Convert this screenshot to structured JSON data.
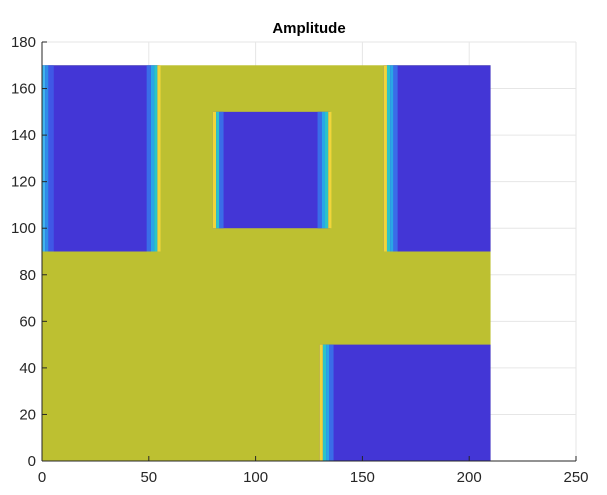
{
  "chart_data": {
    "type": "heatmap",
    "title": "Amplitude",
    "xlim": [
      0,
      250
    ],
    "ylim": [
      0,
      180
    ],
    "x_ticks": [
      0,
      50,
      100,
      150,
      200,
      250
    ],
    "y_ticks": [
      0,
      20,
      40,
      60,
      80,
      100,
      120,
      140,
      160,
      180
    ],
    "grid": true,
    "field_extent": {
      "x": [
        0,
        210
      ],
      "y": [
        0,
        170
      ]
    },
    "background_color": "#bdc031",
    "regions": [
      {
        "x": [
          0,
          55
        ],
        "y": [
          90,
          170
        ],
        "fill": "#4336d6",
        "edges": [
          {
            "x": [
              0,
              1.5
            ],
            "color": "#3fb5ee"
          },
          {
            "x": [
              1.5,
              3
            ],
            "color": "#2f8ce8"
          },
          {
            "x": [
              3,
              5.5
            ],
            "color": "#3f58e6"
          },
          {
            "x": [
              49,
              51
            ],
            "color": "#3a6ce8"
          },
          {
            "x": [
              51,
              52.5
            ],
            "color": "#2aa6e6"
          },
          {
            "x": [
              52.5,
              54
            ],
            "color": "#2cc4c8"
          },
          {
            "x": [
              54,
              55.5
            ],
            "color": "#f0d53a"
          }
        ]
      },
      {
        "x": [
          80,
          135
        ],
        "y": [
          100,
          150
        ],
        "fill": "#4336d6",
        "edges": [
          {
            "x": [
              80,
              81.5
            ],
            "color": "#f0d53a"
          },
          {
            "x": [
              81.5,
              83
            ],
            "color": "#2cc4c8"
          },
          {
            "x": [
              83,
              85
            ],
            "color": "#3a6ce8"
          },
          {
            "x": [
              129,
              131
            ],
            "color": "#3a6ce8"
          },
          {
            "x": [
              131,
              132.5
            ],
            "color": "#2aa6e6"
          },
          {
            "x": [
              132.5,
              134
            ],
            "color": "#2cc4c8"
          },
          {
            "x": [
              134,
              135.5
            ],
            "color": "#f0d53a"
          }
        ]
      },
      {
        "x": [
          160,
          210
        ],
        "y": [
          90,
          170
        ],
        "fill": "#4336d6",
        "edges": [
          {
            "x": [
              160,
              161.5
            ],
            "color": "#f0d53a"
          },
          {
            "x": [
              161.5,
              163
            ],
            "color": "#2cc4c8"
          },
          {
            "x": [
              163,
              164.5
            ],
            "color": "#2aa6e6"
          },
          {
            "x": [
              164.5,
              166.5
            ],
            "color": "#3a6ce8"
          }
        ]
      },
      {
        "x": [
          130,
          210
        ],
        "y": [
          0,
          50
        ],
        "fill": "#4336d6",
        "edges": [
          {
            "x": [
              130,
              131.5
            ],
            "color": "#f0d53a"
          },
          {
            "x": [
              131.5,
              133
            ],
            "color": "#2cc4c8"
          },
          {
            "x": [
              133,
              134.5
            ],
            "color": "#2aa6e6"
          },
          {
            "x": [
              134.5,
              136.5
            ],
            "color": "#3a6ce8"
          }
        ]
      }
    ]
  }
}
